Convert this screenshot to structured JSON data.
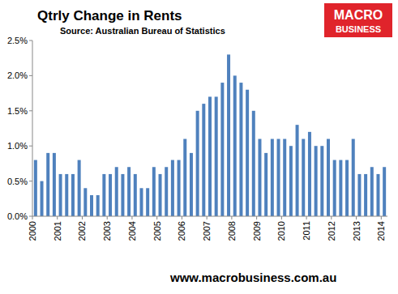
{
  "chart_data": {
    "type": "bar",
    "title": "Qtrly Change in Rents",
    "subtitle": "Source: Australian Bureau of Statistics",
    "annotations": [
      "www.macrobusiness.com.au",
      "MACRO",
      "BUSINESS"
    ],
    "categories": [
      "2000",
      null,
      null,
      null,
      "2001",
      null,
      null,
      null,
      "2002",
      null,
      null,
      null,
      "2003",
      null,
      null,
      null,
      "2004",
      null,
      null,
      null,
      "2005",
      null,
      null,
      null,
      "2006",
      null,
      null,
      null,
      "2007",
      null,
      null,
      null,
      "2008",
      null,
      null,
      null,
      "2009",
      null,
      null,
      null,
      "2010",
      null,
      null,
      null,
      "2011",
      null,
      null,
      null,
      "2012",
      null,
      null,
      null,
      "2013",
      null,
      null,
      null,
      "2014"
    ],
    "values": [
      0.8,
      0.5,
      0.9,
      0.9,
      0.6,
      0.6,
      0.6,
      0.8,
      0.4,
      0.3,
      0.3,
      0.6,
      0.6,
      0.7,
      0.6,
      0.7,
      0.6,
      0.4,
      0.4,
      0.7,
      0.6,
      0.7,
      0.8,
      0.8,
      1.1,
      0.9,
      1.5,
      1.6,
      1.7,
      1.7,
      1.9,
      2.3,
      2.0,
      1.9,
      1.8,
      1.5,
      1.1,
      0.9,
      1.1,
      1.1,
      1.1,
      1.0,
      1.3,
      1.1,
      1.2,
      1.0,
      1.0,
      1.1,
      0.8,
      0.8,
      0.8,
      1.1,
      0.6,
      0.6,
      0.7,
      0.6,
      0.7
    ],
    "color": "#4f81bd",
    "ylim": [
      0,
      2.5
    ],
    "yticks": [
      {
        "value": 0,
        "label": "0.0%"
      },
      {
        "value": 0.5,
        "label": "0.5%"
      },
      {
        "value": 1,
        "label": "1.0%"
      },
      {
        "value": 1.5,
        "label": "1.5%"
      },
      {
        "value": 2,
        "label": "2.0%"
      },
      {
        "value": 2.5,
        "label": "2.5%"
      }
    ],
    "grid": false
  }
}
